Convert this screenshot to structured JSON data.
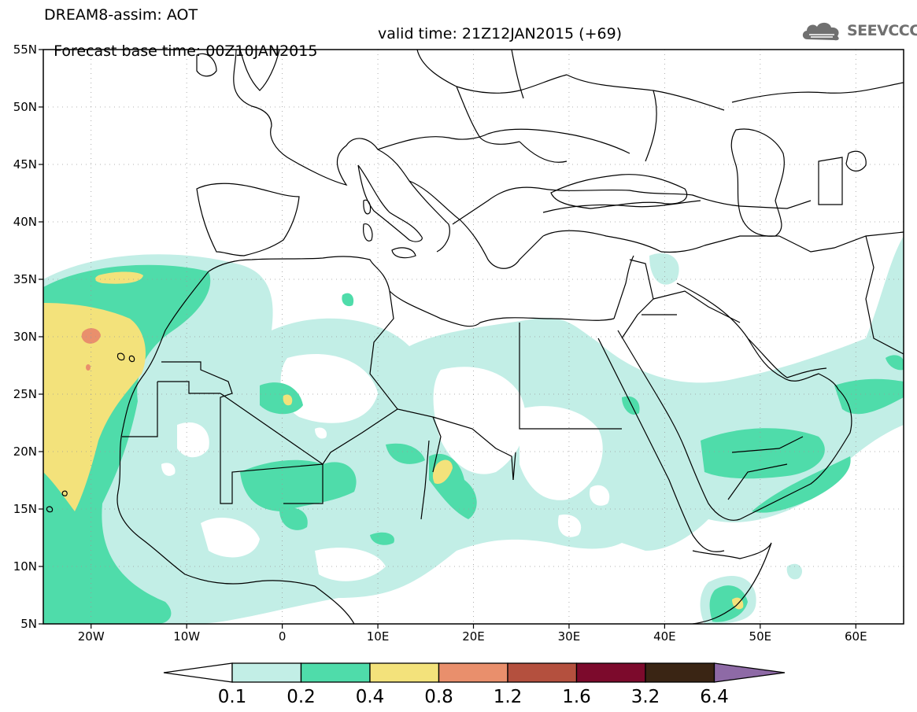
{
  "header": {
    "line1": "DREAM8-assim: AOT",
    "line2_base": "Forecast base time: 00Z10JAN2015",
    "line2_valid": "valid time: 21Z12JAN2015 (+69)"
  },
  "logo": {
    "text": "SEEVCCC",
    "icon": "cloud-logo-icon"
  },
  "map": {
    "lat_labels": [
      "55N",
      "50N",
      "45N",
      "40N",
      "35N",
      "30N",
      "25N",
      "20N",
      "15N",
      "10N",
      "5N"
    ],
    "lon_labels": [
      "20W",
      "10W",
      "0",
      "10E",
      "20E",
      "30E",
      "40E",
      "50E",
      "60E"
    ],
    "lat_range": [
      5,
      55
    ],
    "lon_range": [
      -25,
      65
    ],
    "grid": "dotted"
  },
  "colorbar": {
    "labels": [
      "0.1",
      "0.2",
      "0.4",
      "0.8",
      "1.2",
      "1.6",
      "3.2",
      "6.4"
    ],
    "colors": [
      "#c2eee6",
      "#4fdcaa",
      "#f3e27b",
      "#e98f6c",
      "#b4503e",
      "#7c0a2c",
      "#3a2514",
      "#8e6aa6"
    ],
    "left_arrow_color": "#ffffff",
    "right_arrow_color": "#8e6aa6"
  },
  "palette": {
    "c1": "#c2eee6",
    "c2": "#4fdcaa",
    "c3": "#f3e27b",
    "c4": "#e98f6c"
  }
}
